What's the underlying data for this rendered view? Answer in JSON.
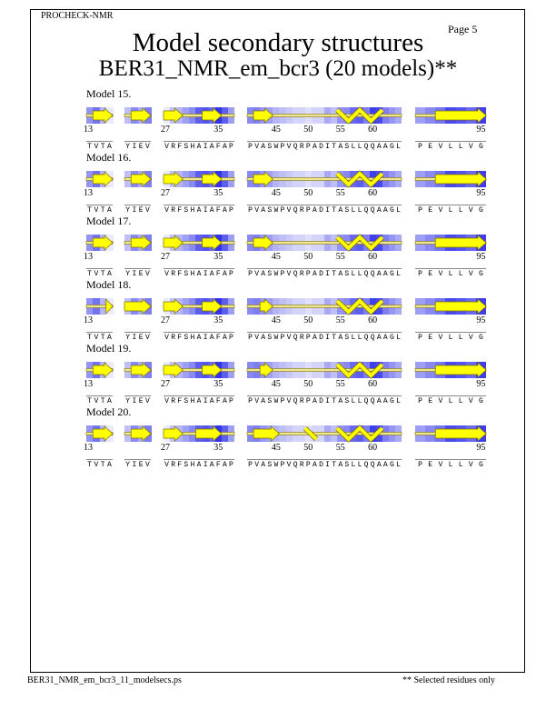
{
  "header": {
    "program": "PROCHECK-NMR",
    "page": "Page  5",
    "title": "Model secondary structures",
    "subtitle": "BER31_NMR_em_bcr3 (20 models)**"
  },
  "footer": {
    "filename": "BER31_NMR_em_bcr3_11_modelsecs.ps",
    "note": "** Selected residues only"
  },
  "colors": {
    "strand": "#ffff00",
    "strand_outline": "#807000",
    "shade_max": "#2828e8",
    "shade_min": "#ffffff"
  },
  "segments": [
    {
      "sequence": "TVTA",
      "ticks": [
        {
          "index": 0,
          "label": "13"
        }
      ],
      "shading": [
        0.5,
        0.65,
        0.35,
        0.1
      ]
    },
    {
      "sequence": "YIEV",
      "ticks": [],
      "shading": [
        0.3,
        0.55,
        0.4,
        0.6
      ]
    },
    {
      "sequence": "VRFSHAIAFAP",
      "ticks": [
        {
          "index": 0,
          "label": "27"
        },
        {
          "index": 8,
          "label": "35"
        }
      ],
      "shading": [
        0.1,
        0.3,
        0.35,
        0.45,
        0.55,
        0.75,
        0.8,
        0.7,
        0.95,
        0.75,
        0.45
      ]
    },
    {
      "sequence": "PVASWPVQRPADITASLLQQAAGL",
      "ticks": [
        {
          "index": 4,
          "label": "45"
        },
        {
          "index": 9,
          "label": "50"
        },
        {
          "index": 14,
          "label": "55"
        },
        {
          "index": 19,
          "label": "60"
        }
      ],
      "shading": [
        0.55,
        0.6,
        0.5,
        0.45,
        0.35,
        0.3,
        0.25,
        0.2,
        0.2,
        0.15,
        0.2,
        0.2,
        0.4,
        0.3,
        0.5,
        0.55,
        0.7,
        0.75,
        0.6,
        0.9,
        0.85,
        0.6,
        0.5,
        0.4
      ]
    },
    {
      "sequence": "PEVLLVG",
      "ticks": [
        {
          "index": 6,
          "label": "95"
        }
      ],
      "shading": [
        0.45,
        0.55,
        0.65,
        0.85,
        0.8,
        0.7,
        0.9
      ]
    }
  ],
  "models": [
    {
      "label": "Model 15.",
      "elements": [
        {
          "seg": 0,
          "type": "strand",
          "from": 1,
          "to": 3
        },
        {
          "seg": 1,
          "type": "strand",
          "from": 1,
          "to": 3
        },
        {
          "seg": 2,
          "type": "strand",
          "from": 0,
          "to": 2
        },
        {
          "seg": 2,
          "type": "strand",
          "from": 6,
          "to": 8
        },
        {
          "seg": 3,
          "type": "strand",
          "from": 1,
          "to": 3
        },
        {
          "seg": 3,
          "type": "helix",
          "from": 14,
          "to": 20
        },
        {
          "seg": 4,
          "type": "strand",
          "from": 2,
          "to": 6
        }
      ]
    },
    {
      "label": "Model 16.",
      "elements": [
        {
          "seg": 0,
          "type": "strand",
          "from": 1,
          "to": 3
        },
        {
          "seg": 1,
          "type": "strand",
          "from": 1,
          "to": 3
        },
        {
          "seg": 2,
          "type": "strand",
          "from": 0,
          "to": 2
        },
        {
          "seg": 2,
          "type": "strand",
          "from": 6,
          "to": 8
        },
        {
          "seg": 3,
          "type": "strand",
          "from": 1,
          "to": 3
        },
        {
          "seg": 3,
          "type": "helix",
          "from": 14,
          "to": 20
        },
        {
          "seg": 4,
          "type": "strand",
          "from": 2,
          "to": 6
        }
      ]
    },
    {
      "label": "Model 17.",
      "elements": [
        {
          "seg": 0,
          "type": "strand",
          "from": 1,
          "to": 3
        },
        {
          "seg": 1,
          "type": "strand",
          "from": 1,
          "to": 3
        },
        {
          "seg": 2,
          "type": "strand",
          "from": 0,
          "to": 2
        },
        {
          "seg": 2,
          "type": "strand",
          "from": 6,
          "to": 8
        },
        {
          "seg": 3,
          "type": "strand",
          "from": 1,
          "to": 3
        },
        {
          "seg": 3,
          "type": "helix",
          "from": 14,
          "to": 20
        },
        {
          "seg": 4,
          "type": "strand",
          "from": 2,
          "to": 6
        }
      ]
    },
    {
      "label": "Model 18.",
      "elements": [
        {
          "seg": 0,
          "type": "strand",
          "from": 3,
          "to": 3
        },
        {
          "seg": 1,
          "type": "strand",
          "from": 0,
          "to": 3
        },
        {
          "seg": 2,
          "type": "strand",
          "from": 0,
          "to": 2
        },
        {
          "seg": 2,
          "type": "strand",
          "from": 6,
          "to": 8
        },
        {
          "seg": 3,
          "type": "strand",
          "from": 2,
          "to": 3
        },
        {
          "seg": 3,
          "type": "helix",
          "from": 14,
          "to": 20
        },
        {
          "seg": 4,
          "type": "strand",
          "from": 2,
          "to": 6
        }
      ]
    },
    {
      "label": "Model 19.",
      "elements": [
        {
          "seg": 0,
          "type": "strand",
          "from": 1,
          "to": 3
        },
        {
          "seg": 1,
          "type": "strand",
          "from": 1,
          "to": 3
        },
        {
          "seg": 2,
          "type": "strand",
          "from": 0,
          "to": 2
        },
        {
          "seg": 2,
          "type": "strand",
          "from": 6,
          "to": 8
        },
        {
          "seg": 3,
          "type": "strand",
          "from": 2,
          "to": 3
        },
        {
          "seg": 3,
          "type": "helix",
          "from": 14,
          "to": 20
        },
        {
          "seg": 4,
          "type": "strand",
          "from": 2,
          "to": 6
        }
      ]
    },
    {
      "label": "Model 20.",
      "elements": [
        {
          "seg": 0,
          "type": "strand",
          "from": 1,
          "to": 3
        },
        {
          "seg": 1,
          "type": "strand",
          "from": 1,
          "to": 3
        },
        {
          "seg": 2,
          "type": "strand",
          "from": 0,
          "to": 2
        },
        {
          "seg": 2,
          "type": "strand",
          "from": 5,
          "to": 8
        },
        {
          "seg": 3,
          "type": "strand",
          "from": 1,
          "to": 4
        },
        {
          "seg": 3,
          "type": "helix",
          "from": 9,
          "to": 11
        },
        {
          "seg": 3,
          "type": "helix",
          "from": 14,
          "to": 20
        },
        {
          "seg": 4,
          "type": "strand",
          "from": 2,
          "to": 6
        }
      ]
    }
  ]
}
